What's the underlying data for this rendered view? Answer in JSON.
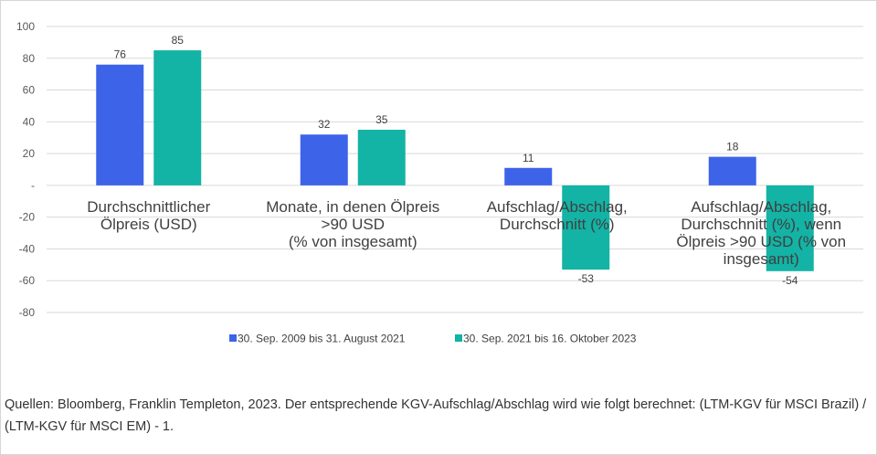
{
  "chart_data": {
    "type": "bar",
    "categories": [
      [
        "Durchschnittlicher",
        "Ölpreis (USD)"
      ],
      [
        "Monate, in denen Ölpreis",
        ">90 USD",
        "(% von insgesamt)"
      ],
      [
        "Aufschlag/Abschlag,",
        "Durchschnitt (%)"
      ],
      [
        "Aufschlag/Abschlag,",
        "Durchschnitt (%), wenn",
        "Ölpreis >90 USD (% von",
        "insgesamt)"
      ]
    ],
    "series": [
      {
        "name": "30. Sep. 2009 bis 31. August 2021",
        "color": "#3d63e8",
        "values": [
          76,
          32,
          11,
          18
        ]
      },
      {
        "name": "30. Sep. 2021 bis 16. Oktober 2023",
        "color": "#13b3a5",
        "values": [
          85,
          35,
          -53,
          -54
        ]
      }
    ],
    "ylim": [
      -80,
      100
    ],
    "yticks": [
      100,
      80,
      60,
      40,
      20,
      0,
      -20,
      -40,
      -60,
      -80
    ],
    "ytick_labels": [
      "100",
      "80",
      "60",
      "40",
      "20",
      "-",
      "-20",
      "-40",
      "-60",
      "-80"
    ],
    "grid": true,
    "legend_position": "bottom"
  },
  "source_note": "Quellen: Bloomberg, Franklin Templeton, 2023. Der entsprechende KGV-Aufschlag/Abschlag wird wie folgt berechnet: (LTM-KGV für MSCI Brazil) / (LTM-KGV für MSCI EM) - 1."
}
